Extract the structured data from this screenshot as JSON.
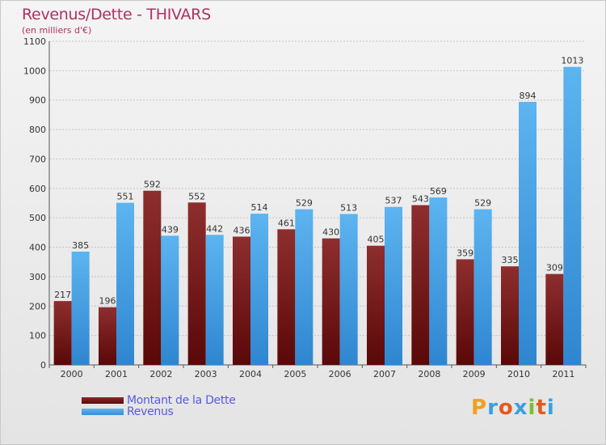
{
  "header": {
    "title": "Revenus/Dette - THIVARS",
    "subtitle": "(en milliers d'€)"
  },
  "legend": {
    "dette_label": "Montant de la Dette",
    "revenus_label": "Revenus"
  },
  "logo": {
    "text": "Proxiti",
    "letters": [
      "P",
      "r",
      "o",
      "x",
      "i",
      "t",
      "i"
    ],
    "letter_colors": [
      "#f0a020",
      "#3aa0e0",
      "#e05a20",
      "#3aa0e0",
      "#7ac030",
      "#e05a20",
      "#3aa0e0"
    ]
  },
  "colors": {
    "dette": "#7a1a1a",
    "revenus": "#4aa3e8"
  },
  "chart_data": {
    "type": "bar",
    "title": "Revenus/Dette - THIVARS",
    "ylabel": "(en milliers d'€)",
    "xlabel": "",
    "categories": [
      "2000",
      "2001",
      "2002",
      "2003",
      "2004",
      "2005",
      "2006",
      "2007",
      "2008",
      "2009",
      "2010",
      "2011"
    ],
    "series": [
      {
        "name": "Montant de la Dette",
        "values": [
          217,
          196,
          592,
          552,
          436,
          461,
          430,
          405,
          543,
          359,
          335,
          309
        ]
      },
      {
        "name": "Revenus",
        "values": [
          385,
          551,
          439,
          442,
          514,
          529,
          513,
          537,
          569,
          529,
          894,
          1013
        ]
      }
    ],
    "ylim": [
      0,
      1100
    ],
    "yticks": [
      0,
      100,
      200,
      300,
      400,
      500,
      600,
      700,
      800,
      900,
      1000,
      1100
    ],
    "grid": true,
    "legend_position": "bottom-left"
  }
}
